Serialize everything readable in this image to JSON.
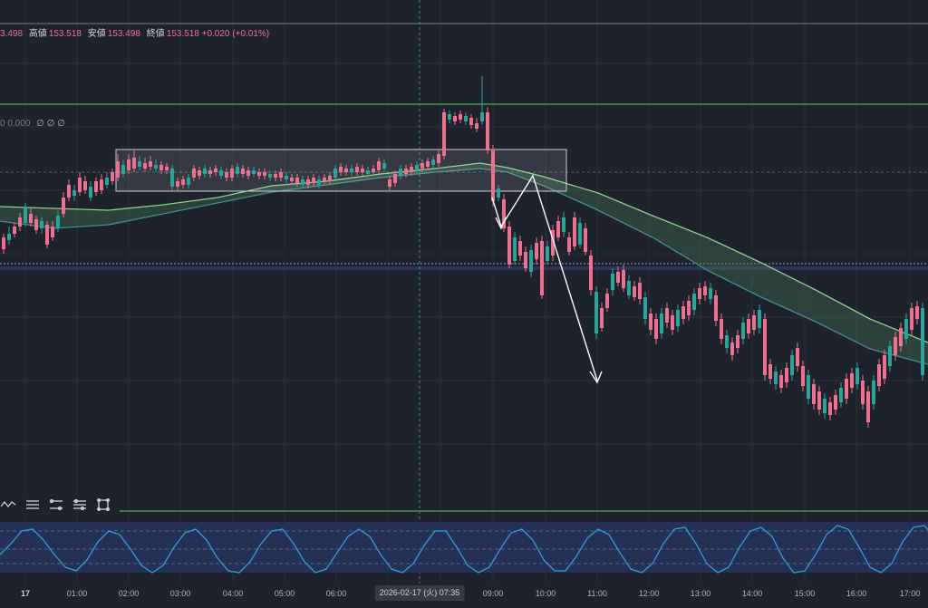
{
  "ohlc_header": {
    "open_partial": "3.498",
    "high_label": "高値",
    "high_value": "153.518",
    "low_label": "安値",
    "low_value": "153.498",
    "close_label": "終値",
    "close_value": "153.518",
    "change": "+0.020 (+0.01%)"
  },
  "indicator_values": {
    "value": "0 0.000",
    "glyphs": "∅ ∅ ∅"
  },
  "time_axis": {
    "ticks": [
      "17",
      "01:00",
      "02:00",
      "03:00",
      "04:00",
      "05:00",
      "06:00",
      "09:00",
      "10:00",
      "11:00",
      "12:00",
      "13:00",
      "14:00",
      "15:00",
      "16:00",
      "17:00"
    ],
    "cursor_label": "2026-02-17 (火)  07:35"
  },
  "colors": {
    "background": "#1e222d",
    "bullish": "#f06f8e",
    "bearish": "#26a69a",
    "ma_fast": "#8fce8a",
    "ma_slow": "#3f8f86",
    "horizontal_level": "#4caf50",
    "oscillator": "#2a9fd6",
    "annotation": "#ffffff"
  },
  "toolbar": {
    "tools": [
      "zigzag-icon",
      "horizontal-lines-icon",
      "parallel-channel-icon",
      "fib-icon",
      "rectangle-icon"
    ]
  },
  "chart_data": {
    "type": "candlestick",
    "timeframe_note": "",
    "candles_approx": [
      {
        "t": "00:00",
        "o": 255,
        "c": 278
      },
      {
        "t": "00:30",
        "o": 240,
        "c": 225
      },
      {
        "t": "00:45",
        "o": 265,
        "c": 242
      },
      {
        "t": "01:00",
        "o": 228,
        "c": 205
      },
      {
        "t": "01:15",
        "o": 212,
        "c": 198
      },
      {
        "t": "01:45",
        "o": 206,
        "c": 176
      },
      {
        "t": "02:00",
        "o": 178,
        "c": 192
      },
      {
        "t": "02:30",
        "o": 182,
        "c": 188
      },
      {
        "t": "03:00",
        "o": 188,
        "c": 205
      },
      {
        "t": "03:30",
        "o": 195,
        "c": 188
      },
      {
        "t": "04:00",
        "o": 186,
        "c": 192
      },
      {
        "t": "05:00",
        "o": 192,
        "c": 200
      },
      {
        "t": "06:00",
        "o": 198,
        "c": 186
      },
      {
        "t": "07:00",
        "o": 185,
        "c": 192
      },
      {
        "t": "07:35",
        "o": 190,
        "c": 180
      },
      {
        "t": "08:00",
        "o": 178,
        "c": 124
      },
      {
        "t": "08:30",
        "o": 128,
        "c": 140
      },
      {
        "t": "08:50",
        "o": 125,
        "c": 165
      },
      {
        "t": "09:00",
        "o": 165,
        "c": 248
      },
      {
        "t": "09:15",
        "o": 228,
        "c": 290
      },
      {
        "t": "09:45",
        "o": 275,
        "c": 300
      },
      {
        "t": "10:00",
        "o": 280,
        "c": 255
      },
      {
        "t": "10:15",
        "o": 258,
        "c": 242
      },
      {
        "t": "10:30",
        "o": 248,
        "c": 280
      },
      {
        "t": "10:50",
        "o": 285,
        "c": 342
      },
      {
        "t": "11:00",
        "o": 340,
        "c": 315
      },
      {
        "t": "11:30",
        "o": 318,
        "c": 300
      },
      {
        "t": "12:00",
        "o": 330,
        "c": 365
      },
      {
        "t": "12:30",
        "o": 360,
        "c": 342
      },
      {
        "t": "13:00",
        "o": 350,
        "c": 318
      },
      {
        "t": "13:30",
        "o": 330,
        "c": 382
      },
      {
        "t": "14:00",
        "o": 370,
        "c": 342
      },
      {
        "t": "14:30",
        "o": 350,
        "c": 410
      },
      {
        "t": "15:00",
        "o": 400,
        "c": 425
      },
      {
        "t": "15:30",
        "o": 430,
        "c": 455
      },
      {
        "t": "16:00",
        "o": 460,
        "c": 425
      },
      {
        "t": "16:30",
        "o": 430,
        "c": 395
      },
      {
        "t": "17:00",
        "o": 390,
        "c": 340
      }
    ],
    "xlabel": "",
    "ylabel": ""
  }
}
